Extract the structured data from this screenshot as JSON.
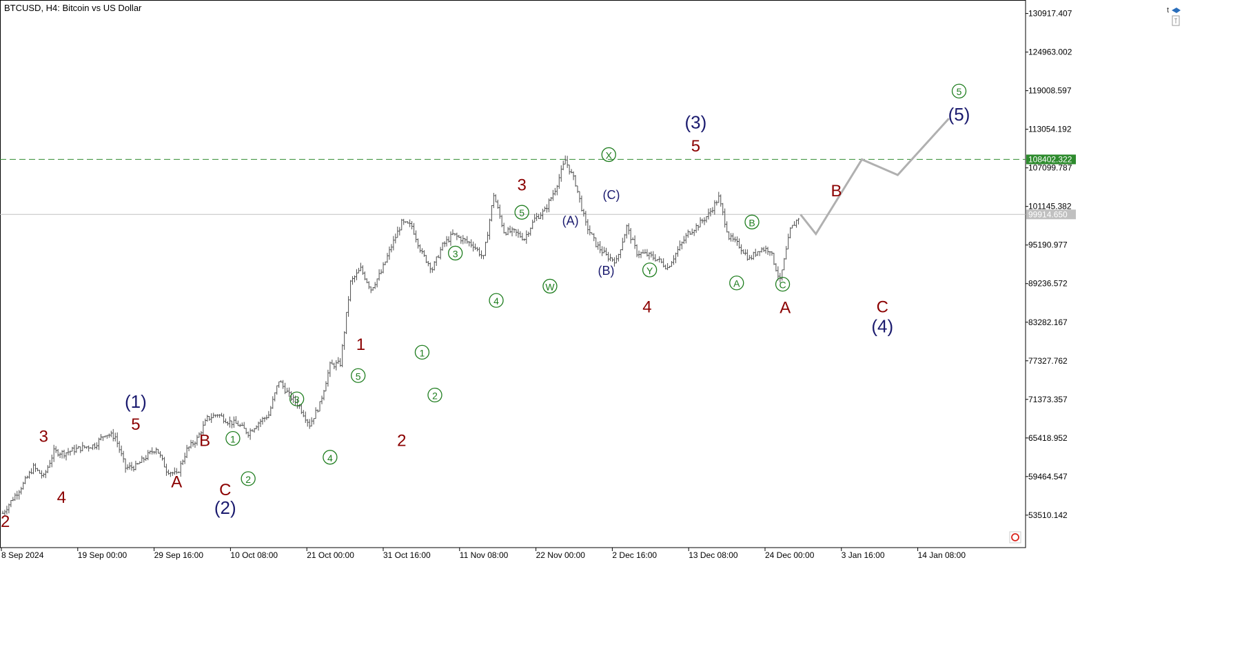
{
  "header": {
    "title": "BTCUSD, H4:  Bitcoin vs US Dollar"
  },
  "colors": {
    "candle": "#4d4d4d",
    "wave_red": "#8b0000",
    "wave_blue": "#1a1a6e",
    "wave_green": "#1e7d1e",
    "level_line": "#2e8b2e",
    "current_line": "#c0c0c0",
    "projection": "#b0b0b0",
    "axis": "#000000"
  },
  "chart_data": {
    "type": "line",
    "symbol": "BTCUSD",
    "timeframe": "H4",
    "description": "Bitcoin vs US Dollar",
    "ylim": [
      48500,
      133000
    ],
    "y_ticks": [
      "130917.407",
      "124963.002",
      "119008.597",
      "113054.192",
      "107099.787",
      "101145.382",
      "95190.977",
      "89236.572",
      "83282.167",
      "77327.762",
      "71373.357",
      "65418.952",
      "59464.547",
      "53510.142"
    ],
    "x_ticks": [
      "8 Sep 2024",
      "19 Sep 00:00",
      "29 Sep 16:00",
      "10 Oct 08:00",
      "21 Oct 00:00",
      "31 Oct 16:00",
      "11 Nov 08:00",
      "22 Nov 00:00",
      "2 Dec 16:00",
      "13 Dec 08:00",
      "24 Dec 00:00",
      "3 Jan 16:00",
      "14 Jan 08:00"
    ],
    "levels": [
      {
        "value": 108402.322,
        "label": "108402.322",
        "style": "dashed"
      },
      {
        "value": 99914.65,
        "label": "99914.650",
        "style": "solid"
      }
    ],
    "price_path": [
      [
        0,
        53800
      ],
      [
        2,
        56100
      ],
      [
        4,
        58300
      ],
      [
        6,
        60900
      ],
      [
        8,
        59400
      ],
      [
        10,
        63300
      ],
      [
        12,
        63100
      ],
      [
        14,
        63600
      ],
      [
        16,
        64000
      ],
      [
        18,
        64300
      ],
      [
        20,
        66100
      ],
      [
        22,
        65600
      ],
      [
        24,
        60800
      ],
      [
        26,
        61000
      ],
      [
        28,
        62500
      ],
      [
        30,
        63900
      ],
      [
        32,
        60500
      ],
      [
        34,
        59700
      ],
      [
        36,
        63600
      ],
      [
        38,
        65300
      ],
      [
        40,
        68400
      ],
      [
        42,
        69100
      ],
      [
        44,
        68000
      ],
      [
        46,
        67500
      ],
      [
        48,
        66200
      ],
      [
        50,
        67800
      ],
      [
        52,
        69000
      ],
      [
        54,
        74300
      ],
      [
        56,
        72000
      ],
      [
        58,
        70300
      ],
      [
        60,
        67500
      ],
      [
        62,
        70600
      ],
      [
        64,
        76600
      ],
      [
        66,
        76900
      ],
      [
        68,
        89400
      ],
      [
        70,
        91500
      ],
      [
        72,
        88400
      ],
      [
        74,
        91000
      ],
      [
        76,
        95000
      ],
      [
        78,
        98600
      ],
      [
        80,
        98100
      ],
      [
        82,
        93800
      ],
      [
        84,
        91500
      ],
      [
        86,
        95100
      ],
      [
        88,
        96800
      ],
      [
        90,
        96000
      ],
      [
        92,
        95200
      ],
      [
        94,
        93200
      ],
      [
        96,
        103000
      ],
      [
        98,
        97300
      ],
      [
        100,
        97200
      ],
      [
        102,
        96200
      ],
      [
        104,
        99200
      ],
      [
        106,
        100500
      ],
      [
        108,
        103800
      ],
      [
        110,
        108300
      ],
      [
        112,
        104700
      ],
      [
        114,
        98400
      ],
      [
        116,
        95300
      ],
      [
        118,
        93500
      ],
      [
        120,
        92700
      ],
      [
        122,
        98000
      ],
      [
        124,
        94000
      ],
      [
        126,
        93700
      ],
      [
        128,
        93000
      ],
      [
        130,
        91700
      ],
      [
        132,
        94400
      ],
      [
        134,
        97000
      ],
      [
        136,
        98300
      ],
      [
        138,
        99900
      ],
      [
        140,
        102500
      ],
      [
        142,
        96400
      ],
      [
        144,
        95100
      ],
      [
        146,
        93000
      ],
      [
        148,
        94600
      ],
      [
        150,
        94500
      ],
      [
        152,
        89600
      ],
      [
        154,
        97500
      ],
      [
        156,
        99900
      ]
    ],
    "projection": [
      [
        156,
        99900
      ],
      [
        159,
        96900
      ],
      [
        168,
        108400
      ],
      [
        175,
        106000
      ],
      [
        185,
        114700
      ]
    ],
    "x_range": [
      0,
      200
    ],
    "annotations": [
      {
        "text": "2",
        "group": "red",
        "x": 0.5,
        "y": 51700
      },
      {
        "text": "3",
        "group": "red",
        "x": 8,
        "y": 64800
      },
      {
        "text": "4",
        "group": "red",
        "x": 11.5,
        "y": 55400
      },
      {
        "text": "5",
        "group": "red",
        "x": 26,
        "y": 66700
      },
      {
        "text": "(1)",
        "group": "blue",
        "x": 26,
        "y": 70100
      },
      {
        "text": "A",
        "group": "red",
        "x": 34,
        "y": 57800
      },
      {
        "text": "B",
        "group": "red",
        "x": 39.5,
        "y": 64200
      },
      {
        "text": "C",
        "group": "red",
        "x": 43.5,
        "y": 56600
      },
      {
        "text": "(2)",
        "group": "blue",
        "x": 43.5,
        "y": 53700
      },
      {
        "text": "1",
        "group": "green_circle",
        "x": 45,
        "y": 64600
      },
      {
        "text": "2",
        "group": "green_circle",
        "x": 48,
        "y": 58400
      },
      {
        "text": "3",
        "group": "green_circle",
        "x": 57.5,
        "y": 70700
      },
      {
        "text": "4",
        "group": "green_circle",
        "x": 64,
        "y": 61700
      },
      {
        "text": "5",
        "group": "green_circle",
        "x": 69.5,
        "y": 74300
      },
      {
        "text": "1",
        "group": "red",
        "x": 70,
        "y": 79000
      },
      {
        "text": "2",
        "group": "red",
        "x": 78,
        "y": 64200
      },
      {
        "text": "1",
        "group": "green_circle",
        "x": 82,
        "y": 77900
      },
      {
        "text": "2",
        "group": "green_circle",
        "x": 84.5,
        "y": 71300
      },
      {
        "text": "3",
        "group": "green_circle",
        "x": 88.5,
        "y": 93200
      },
      {
        "text": "4",
        "group": "green_circle",
        "x": 96.5,
        "y": 85900
      },
      {
        "text": "5",
        "group": "green_circle",
        "x": 101.5,
        "y": 99500
      },
      {
        "text": "3",
        "group": "red",
        "x": 101.5,
        "y": 103600
      },
      {
        "text": "W",
        "group": "green_circle",
        "x": 107,
        "y": 88100
      },
      {
        "text": "(A)",
        "group": "blue_small",
        "x": 111,
        "y": 98300
      },
      {
        "text": "(B)",
        "group": "blue_small",
        "x": 118,
        "y": 90600
      },
      {
        "text": "(C)",
        "group": "blue_small",
        "x": 119,
        "y": 102300
      },
      {
        "text": "X",
        "group": "green_circle",
        "x": 118.5,
        "y": 108400
      },
      {
        "text": "Y",
        "group": "green_circle",
        "x": 126.5,
        "y": 90600
      },
      {
        "text": "4",
        "group": "red",
        "x": 126,
        "y": 84800
      },
      {
        "text": "5",
        "group": "red",
        "x": 135.5,
        "y": 109600
      },
      {
        "text": "(3)",
        "group": "blue",
        "x": 135.5,
        "y": 113200
      },
      {
        "text": "A",
        "group": "green_circle",
        "x": 143.5,
        "y": 88600
      },
      {
        "text": "B",
        "group": "green_circle",
        "x": 146.5,
        "y": 98000
      },
      {
        "text": "C",
        "group": "green_circle",
        "x": 152.5,
        "y": 88400
      },
      {
        "text": "A",
        "group": "red",
        "x": 153,
        "y": 84700
      },
      {
        "text": "B",
        "group": "red",
        "x": 163,
        "y": 102700
      },
      {
        "text": "C",
        "group": "red",
        "x": 172,
        "y": 84800
      },
      {
        "text": "(4)",
        "group": "blue",
        "x": 172,
        "y": 81700
      },
      {
        "text": "5",
        "group": "green_circle",
        "x": 187,
        "y": 118200
      },
      {
        "text": "(5)",
        "group": "blue",
        "x": 187,
        "y": 114400
      }
    ]
  }
}
